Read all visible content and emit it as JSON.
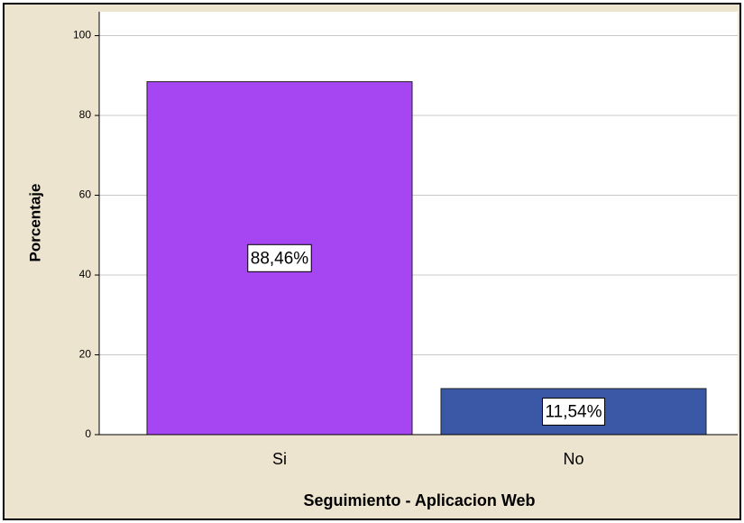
{
  "chart_data": {
    "type": "bar",
    "categories": [
      "Si",
      "No"
    ],
    "values": [
      88.46,
      11.54
    ],
    "value_labels": [
      "88,46%",
      "11,54%"
    ],
    "colors": [
      "#a646f2",
      "#3b58a6"
    ],
    "ylabel": "Porcentaje",
    "xlabel": "Seguimiento - Aplicacion Web",
    "ylim": [
      0,
      106
    ],
    "yticks": [
      0,
      20,
      40,
      60,
      80,
      100
    ],
    "grid": true
  }
}
